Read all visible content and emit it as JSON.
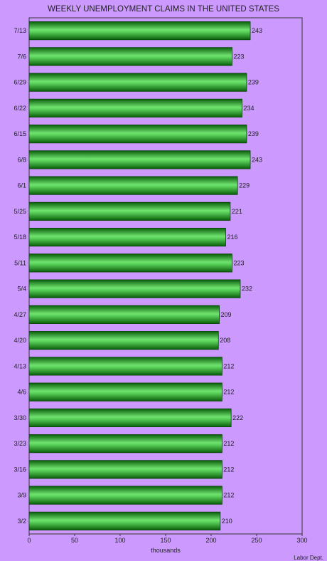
{
  "chart_data": {
    "type": "bar",
    "orientation": "horizontal",
    "title": "WEEKLY UNEMPLOYMENT CLAIMS IN THE UNITED STATES",
    "xlabel": "thousands",
    "ylabel": "",
    "categories": [
      "7/13",
      "7/6",
      "6/29",
      "6/22",
      "6/15",
      "6/8",
      "6/1",
      "5/25",
      "5/18",
      "5/11",
      "5/4",
      "4/27",
      "4/20",
      "4/13",
      "4/6",
      "3/30",
      "3/23",
      "3/16",
      "3/9",
      "3/2"
    ],
    "values": [
      243,
      223,
      239,
      234,
      239,
      243,
      229,
      221,
      216,
      223,
      232,
      209,
      208,
      212,
      212,
      222,
      212,
      212,
      212,
      210
    ],
    "xlim": [
      0,
      300
    ],
    "xticks": [
      0,
      50,
      100,
      150,
      200,
      250,
      300
    ],
    "grid": false,
    "legend": "none",
    "source": "Labor Dept.",
    "colors": {
      "background": "#cc99ff",
      "plot_area": "#cc99ff",
      "bar_dark": "#0b6a0b",
      "bar_light": "#6fe36f",
      "bar_edge": "#064406"
    }
  }
}
